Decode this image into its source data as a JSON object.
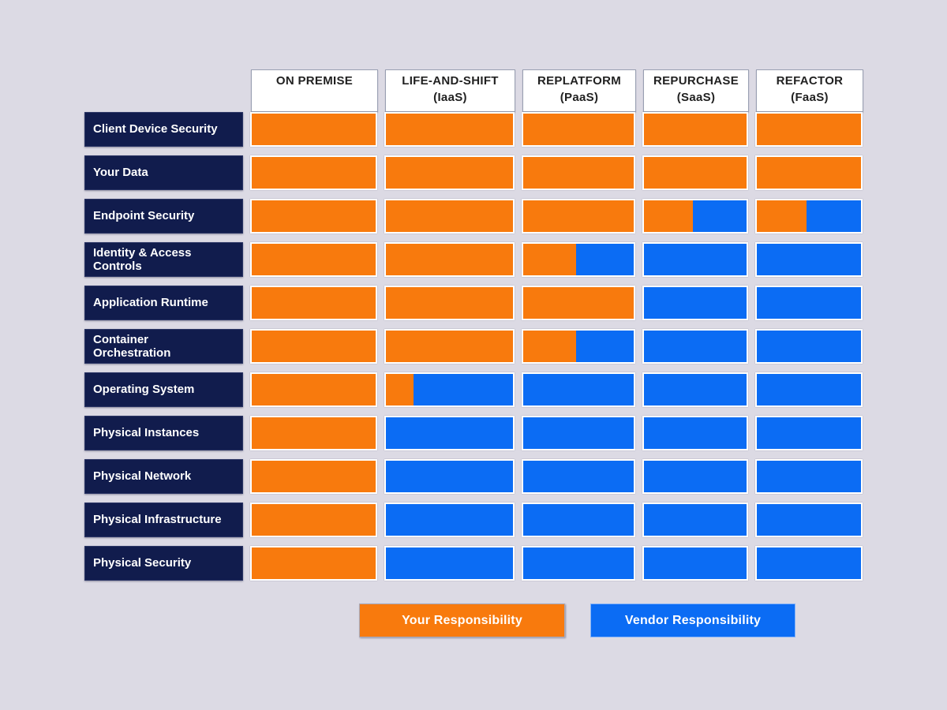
{
  "colors": {
    "background": "#DCDAE4",
    "your": "#F87A0D",
    "vendor": "#0B6CF4",
    "row_label_bg": "#111C4D",
    "row_label_text": "#FFFFFF",
    "header_bg": "#FFFFFF",
    "header_text": "#212121"
  },
  "columns": [
    {
      "title": "ON PREMISE",
      "sub": ""
    },
    {
      "title": "LIFE-AND-SHIFT",
      "sub": "(IaaS)"
    },
    {
      "title": "REPLATFORM",
      "sub": "(PaaS)"
    },
    {
      "title": "REPURCHASE",
      "sub": "(SaaS)"
    },
    {
      "title": "REFACTOR",
      "sub": "(FaaS)"
    }
  ],
  "rows": [
    {
      "label": "Client Device Security",
      "your_pct": [
        100,
        100,
        100,
        100,
        100
      ]
    },
    {
      "label": "Your Data",
      "your_pct": [
        100,
        100,
        100,
        100,
        100
      ]
    },
    {
      "label": "Endpoint Security",
      "your_pct": [
        100,
        100,
        100,
        48,
        48
      ]
    },
    {
      "label": "Identity & Access\nControls",
      "your_pct": [
        100,
        100,
        48,
        0,
        0
      ]
    },
    {
      "label": "Application Runtime",
      "your_pct": [
        100,
        100,
        100,
        0,
        0
      ]
    },
    {
      "label": "Container\nOrchestration",
      "your_pct": [
        100,
        100,
        48,
        0,
        0
      ]
    },
    {
      "label": "Operating System",
      "your_pct": [
        100,
        22,
        0,
        0,
        0
      ]
    },
    {
      "label": "Physical Instances",
      "your_pct": [
        100,
        0,
        0,
        0,
        0
      ]
    },
    {
      "label": "Physical Network",
      "your_pct": [
        100,
        0,
        0,
        0,
        0
      ]
    },
    {
      "label": "Physical Infrastructure",
      "your_pct": [
        100,
        0,
        0,
        0,
        0
      ]
    },
    {
      "label": "Physical Security",
      "your_pct": [
        100,
        0,
        0,
        0,
        0
      ]
    }
  ],
  "legend": {
    "your_label": "Your Responsibility",
    "vendor_label": "Vendor Responsibility"
  },
  "chart_data": {
    "type": "heatmap",
    "title": "",
    "columns": [
      "ON PREMISE",
      "LIFE-AND-SHIFT (IaaS)",
      "REPLATFORM (PaaS)",
      "REPURCHASE (SaaS)",
      "REFACTOR (FaaS)"
    ],
    "rows": [
      "Client Device Security",
      "Your Data",
      "Endpoint Security",
      "Identity & Access Controls",
      "Application Runtime",
      "Container Orchestration",
      "Operating System",
      "Physical Instances",
      "Physical Network",
      "Physical Infrastructure",
      "Physical Security"
    ],
    "values_your_responsibility_pct": [
      [
        100,
        100,
        100,
        100,
        100
      ],
      [
        100,
        100,
        100,
        100,
        100
      ],
      [
        100,
        100,
        100,
        48,
        48
      ],
      [
        100,
        100,
        48,
        0,
        0
      ],
      [
        100,
        100,
        100,
        0,
        0
      ],
      [
        100,
        100,
        48,
        0,
        0
      ],
      [
        100,
        22,
        0,
        0,
        0
      ],
      [
        100,
        0,
        0,
        0,
        0
      ],
      [
        100,
        0,
        0,
        0,
        0
      ],
      [
        100,
        0,
        0,
        0,
        0
      ],
      [
        100,
        0,
        0,
        0,
        0
      ]
    ],
    "legend_entries": [
      "Your Responsibility",
      "Vendor Responsibility"
    ],
    "legend_colors": {
      "Your Responsibility": "#F87A0D",
      "Vendor Responsibility": "#0B6CF4"
    },
    "legend_position": "bottom",
    "grid": false
  }
}
